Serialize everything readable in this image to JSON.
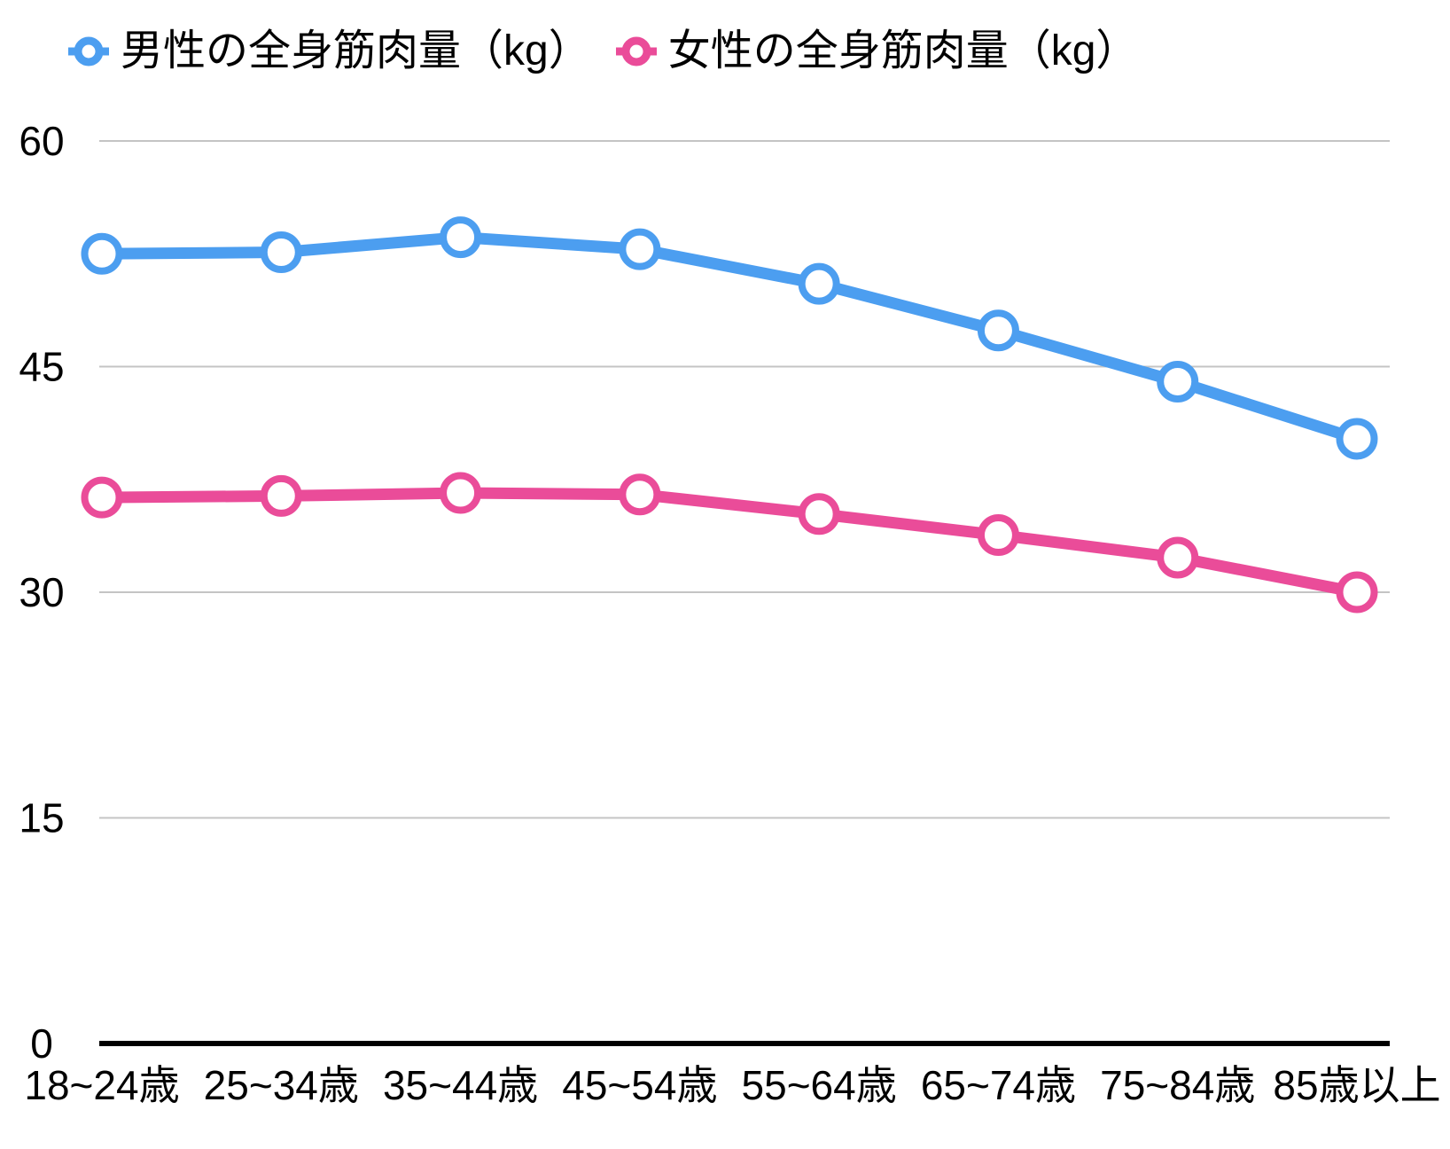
{
  "chart_data": {
    "type": "line",
    "title": "",
    "xlabel": "",
    "ylabel": "",
    "categories": [
      "18~24歳",
      "25~34歳",
      "35~44歳",
      "45~54歳",
      "55~64歳",
      "65~74歳",
      "75~84歳",
      "85歳以上"
    ],
    "series": [
      {
        "id": "male",
        "name": "男性の全身筋肉量（kg）",
        "color": "#4C9EF0",
        "marker": "open-circle",
        "values": [
          52.5,
          52.6,
          53.6,
          52.8,
          50.5,
          47.4,
          44.0,
          40.2
        ]
      },
      {
        "id": "female",
        "name": "女性の全身筋肉量（kg）",
        "color": "#EA4C99",
        "marker": "open-circle",
        "values": [
          36.3,
          36.4,
          36.6,
          36.5,
          35.2,
          33.8,
          32.3,
          30.0
        ]
      }
    ],
    "yticks": [
      0,
      15,
      30,
      45,
      60
    ],
    "ytick_labels": [
      "0",
      "15",
      "30",
      "45",
      "60"
    ],
    "ylim": [
      0,
      60
    ],
    "grid": true,
    "legend_position": "top"
  },
  "colors": {
    "background": "#FFFFFF",
    "gridline": "#C4C4C4",
    "axis": "#000000",
    "text": "#000000"
  }
}
